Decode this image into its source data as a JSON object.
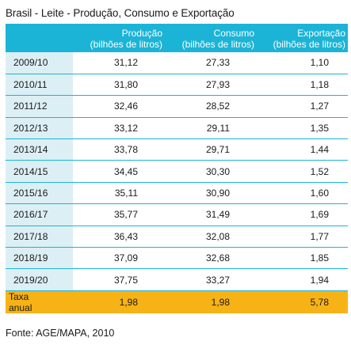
{
  "chart_data": {
    "type": "table",
    "title": "Brasil - Leite - Produção, Consumo e Exportação",
    "columns": [
      {
        "name": "",
        "line1": "",
        "line2": ""
      },
      {
        "name": "Produção (bilhões de litros)",
        "line1": "Produção",
        "line2": "(bilhões de litros)"
      },
      {
        "name": "Consumo (bilhões de litros)",
        "line1": "Consumo",
        "line2": "(bilhões de litros)"
      },
      {
        "name": "Exportação (bilhões de litros)",
        "line1": "Exportação",
        "line2": "(bilhões de litros)"
      }
    ],
    "rows": [
      {
        "label": "2009/10",
        "values": [
          "31,12",
          "27,33",
          "1,10"
        ]
      },
      {
        "label": "2010/11",
        "values": [
          "31,80",
          "27,93",
          "1,18"
        ]
      },
      {
        "label": "2011/12",
        "values": [
          "32,46",
          "28,52",
          "1,27"
        ]
      },
      {
        "label": "2012/13",
        "values": [
          "33,12",
          "29,11",
          "1,35"
        ]
      },
      {
        "label": "2013/14",
        "values": [
          "33,78",
          "29,71",
          "1,44"
        ]
      },
      {
        "label": "2014/15",
        "values": [
          "34,45",
          "30,30",
          "1,52"
        ]
      },
      {
        "label": "2015/16",
        "values": [
          "35,11",
          "30,90",
          "1,60"
        ]
      },
      {
        "label": "2016/17",
        "values": [
          "35,77",
          "31,49",
          "1,69"
        ]
      },
      {
        "label": "2017/18",
        "values": [
          "36,43",
          "32,08",
          "1,77"
        ]
      },
      {
        "label": "2018/19",
        "values": [
          "37,09",
          "32,68",
          "1,85"
        ]
      },
      {
        "label": "2019/20",
        "values": [
          "37,75",
          "33,27",
          "1,94"
        ]
      }
    ],
    "total_row": {
      "label": "Taxa anual",
      "values": [
        "1,98",
        "1,98",
        "5,78"
      ]
    },
    "source": "Fonte: AGE/MAPA, 2010"
  },
  "colors": {
    "header_bg": "#1cb4d6",
    "row_label_bg": "#dceff4",
    "total_row_bg": "#f7b315",
    "row_separator": "#1cb4d6"
  }
}
